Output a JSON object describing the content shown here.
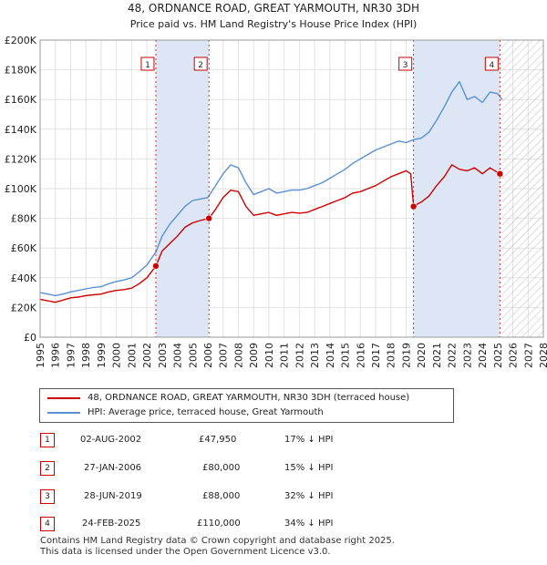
{
  "chart_data": {
    "type": "line",
    "title": "48, ORDNANCE ROAD, GREAT YARMOUTH, NR30 3DH",
    "subtitle": "Price paid vs. HM Land Registry's House Price Index (HPI)",
    "xlabel": "",
    "ylabel": "",
    "xlim": [
      1995,
      2028
    ],
    "ylim": [
      0,
      200000
    ],
    "x_ticks": [
      1995,
      1996,
      1997,
      1998,
      1999,
      2000,
      2001,
      2002,
      2003,
      2004,
      2005,
      2006,
      2007,
      2008,
      2009,
      2010,
      2011,
      2012,
      2013,
      2014,
      2015,
      2016,
      2017,
      2018,
      2019,
      2020,
      2021,
      2022,
      2023,
      2024,
      2025,
      2026,
      2027,
      2028
    ],
    "y_ticks": [
      0,
      20000,
      40000,
      60000,
      80000,
      100000,
      120000,
      140000,
      160000,
      180000,
      200000
    ],
    "y_tick_labels": [
      "£0",
      "£20K",
      "£40K",
      "£60K",
      "£80K",
      "£100K",
      "£120K",
      "£140K",
      "£160K",
      "£180K",
      "£200K"
    ],
    "forecast_start": 2025.3,
    "series": [
      {
        "name": "48, ORDNANCE ROAD, GREAT YARMOUTH, NR30 3DH (terraced house)",
        "color": "#cc0000",
        "x": [
          1995.0,
          1995.5,
          1996.0,
          1996.5,
          1997.0,
          1997.5,
          1998.0,
          1998.5,
          1999.0,
          1999.5,
          2000.0,
          2000.5,
          2001.0,
          2001.5,
          2002.0,
          2002.6,
          2003.0,
          2003.5,
          2004.0,
          2004.5,
          2005.0,
          2005.5,
          2006.07,
          2006.5,
          2007.0,
          2007.5,
          2008.0,
          2008.5,
          2009.0,
          2009.5,
          2010.0,
          2010.5,
          2011.0,
          2011.5,
          2012.0,
          2012.5,
          2013.0,
          2013.5,
          2014.0,
          2014.5,
          2015.0,
          2015.5,
          2016.0,
          2016.5,
          2017.0,
          2017.5,
          2018.0,
          2018.5,
          2019.0,
          2019.3,
          2019.49,
          2019.8,
          2020.0,
          2020.5,
          2021.0,
          2021.5,
          2022.0,
          2022.5,
          2023.0,
          2023.5,
          2024.0,
          2024.5,
          2025.15,
          2025.3
        ],
        "y": [
          25500,
          24500,
          23500,
          25000,
          26500,
          27000,
          28000,
          28500,
          29000,
          30500,
          31500,
          32000,
          33000,
          36000,
          40000,
          47950,
          58000,
          63000,
          68000,
          74000,
          77000,
          78500,
          80000,
          86000,
          94000,
          99000,
          98000,
          88000,
          82000,
          83000,
          84000,
          82000,
          83000,
          84000,
          83500,
          84000,
          86000,
          88000,
          90000,
          92000,
          94000,
          97000,
          98000,
          100000,
          102000,
          105000,
          108000,
          110000,
          112000,
          110000,
          88000,
          90000,
          91000,
          95000,
          102000,
          108000,
          116000,
          113000,
          112000,
          114000,
          110000,
          114000,
          110000,
          108000
        ]
      },
      {
        "name": "HPI: Average price, terraced house, Great Yarmouth",
        "color": "#5b8fd1",
        "x": [
          1995.0,
          1995.5,
          1996.0,
          1996.5,
          1997.0,
          1997.5,
          1998.0,
          1998.5,
          1999.0,
          1999.5,
          2000.0,
          2000.5,
          2001.0,
          2001.5,
          2002.0,
          2002.6,
          2003.0,
          2003.5,
          2004.0,
          2004.5,
          2005.0,
          2005.5,
          2006.0,
          2006.5,
          2007.0,
          2007.5,
          2008.0,
          2008.5,
          2009.0,
          2009.5,
          2010.0,
          2010.5,
          2011.0,
          2011.5,
          2012.0,
          2012.5,
          2013.0,
          2013.5,
          2014.0,
          2014.5,
          2015.0,
          2015.5,
          2016.0,
          2016.5,
          2017.0,
          2017.5,
          2018.0,
          2018.5,
          2019.0,
          2019.5,
          2020.0,
          2020.5,
          2021.0,
          2021.5,
          2022.0,
          2022.5,
          2023.0,
          2023.5,
          2024.0,
          2024.5,
          2025.0,
          2025.3
        ],
        "y": [
          30000,
          29000,
          28000,
          29000,
          30500,
          31500,
          32500,
          33500,
          34000,
          36000,
          37500,
          38500,
          40000,
          44000,
          48500,
          57500,
          68000,
          76000,
          82000,
          88000,
          92000,
          93000,
          94000,
          102000,
          110000,
          116000,
          114000,
          104000,
          96000,
          98000,
          100000,
          97000,
          98000,
          99000,
          99000,
          100000,
          102000,
          104000,
          107000,
          110000,
          113000,
          117000,
          120000,
          123000,
          126000,
          128000,
          130000,
          132000,
          131000,
          133000,
          134000,
          138000,
          146000,
          155000,
          165000,
          172000,
          160000,
          162000,
          158000,
          165000,
          164000,
          160000
        ]
      }
    ],
    "sales": [
      {
        "num": "1",
        "x": 2002.59,
        "y": 47950
      },
      {
        "num": "2",
        "x": 2006.07,
        "y": 80000
      },
      {
        "num": "3",
        "x": 2019.49,
        "y": 88000
      },
      {
        "num": "4",
        "x": 2025.15,
        "y": 110000
      }
    ]
  },
  "legend": {
    "items": [
      {
        "label": "48, ORDNANCE ROAD, GREAT YARMOUTH, NR30 3DH (terraced house)",
        "color": "#cc0000"
      },
      {
        "label": "HPI: Average price, terraced house, Great Yarmouth",
        "color": "#5b8fd1"
      }
    ]
  },
  "transactions": [
    {
      "num": "1",
      "date": "02-AUG-2002",
      "price": "£47,950",
      "hpi": "17% ↓ HPI"
    },
    {
      "num": "2",
      "date": "27-JAN-2006",
      "price": "£80,000",
      "hpi": "15% ↓ HPI"
    },
    {
      "num": "3",
      "date": "28-JUN-2019",
      "price": "£88,000",
      "hpi": "32% ↓ HPI"
    },
    {
      "num": "4",
      "date": "24-FEB-2025",
      "price": "£110,000",
      "hpi": "34% ↓ HPI"
    }
  ],
  "footer": {
    "line1": "Contains HM Land Registry data © Crown copyright and database right 2025.",
    "line2": "This data is licensed under the Open Government Licence v3.0."
  }
}
